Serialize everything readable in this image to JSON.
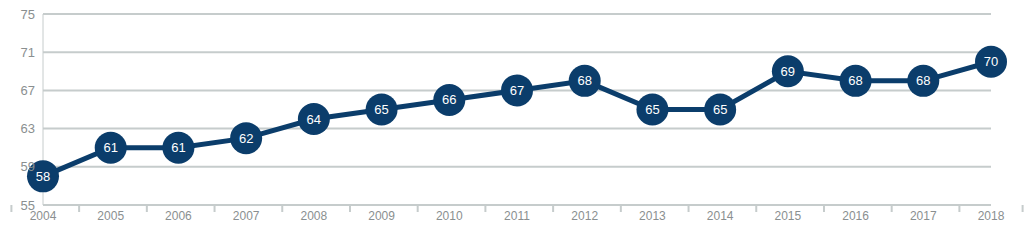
{
  "chart_data": {
    "type": "line",
    "categories": [
      "2004",
      "2005",
      "2006",
      "2007",
      "2008",
      "2009",
      "2010",
      "2011",
      "2012",
      "2013",
      "2014",
      "2015",
      "2016",
      "2017",
      "2018"
    ],
    "values": [
      58,
      61,
      61,
      62,
      64,
      65,
      66,
      67,
      68,
      65,
      65,
      69,
      68,
      68,
      70
    ],
    "color": "#0b3d6b",
    "ylim": [
      55,
      75
    ],
    "yticks": [
      55,
      59,
      63,
      67,
      71,
      75
    ],
    "grid": true,
    "marker": "circle",
    "data_labels": true
  }
}
